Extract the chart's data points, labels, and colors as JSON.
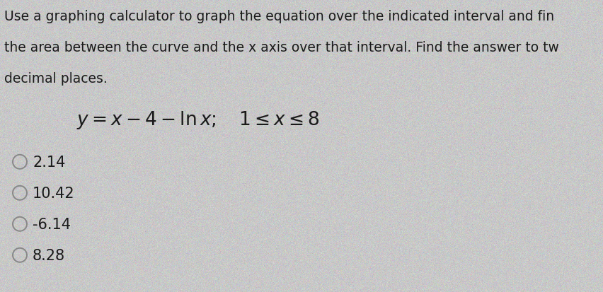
{
  "background_color": "#c8c8c8",
  "body_text_line1": "Use a graphing calculator to graph the equation over the indicated interval and fin",
  "body_text_line2": "the area between the curve and the x axis over that interval. Find the answer to tw",
  "body_text_line3": "decimal places.",
  "choices": [
    "2.14",
    "10.42",
    "-6.14",
    "8.28"
  ],
  "body_fontsize": 13.5,
  "equation_fontsize": 19,
  "choice_fontsize": 15,
  "text_color": "#1a1a1a",
  "circle_color": "#888888"
}
